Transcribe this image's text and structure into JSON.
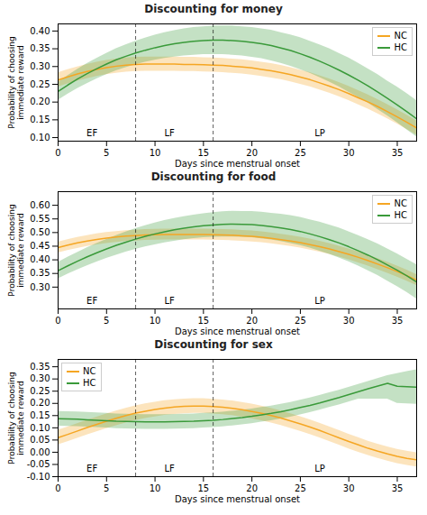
{
  "chart_data": [
    {
      "type": "line",
      "title": "Discounting for money",
      "xlabel": "Days since menstrual onset",
      "ylabel": "Probability of choosing\nimmediate reward",
      "x": [
        0,
        1,
        2,
        3,
        4,
        5,
        6,
        7,
        8,
        9,
        10,
        11,
        12,
        13,
        14,
        15,
        16,
        17,
        18,
        19,
        20,
        21,
        22,
        23,
        24,
        25,
        26,
        27,
        28,
        29,
        30,
        31,
        32,
        33,
        34,
        35,
        36,
        37
      ],
      "xlim": [
        0,
        37
      ],
      "xticks": [
        0,
        5,
        10,
        15,
        20,
        25,
        30,
        35
      ],
      "ylim": [
        0.09,
        0.42
      ],
      "yticks": [
        {
          "value": 0.1,
          "label": "0.10"
        },
        0.15,
        {
          "value": 0.2,
          "label": "0.20"
        },
        0.25,
        {
          "value": 0.3,
          "label": "0.30"
        },
        0.35,
        {
          "value": 0.4,
          "label": "0.40"
        }
      ],
      "vlines": [
        8,
        16
      ],
      "annotations": [
        {
          "text": "EF",
          "x": 3.5
        },
        {
          "text": "LF",
          "x": 11.5
        },
        {
          "text": "LP",
          "x": 27
        }
      ],
      "legend": "upper right",
      "series": [
        {
          "name": "NC",
          "color": "#F5A623",
          "values": [
            0.262,
            0.271,
            0.279,
            0.286,
            0.292,
            0.297,
            0.301,
            0.304,
            0.306,
            0.307,
            0.307,
            0.307,
            0.307,
            0.306,
            0.306,
            0.305,
            0.304,
            0.303,
            0.301,
            0.299,
            0.296,
            0.292,
            0.288,
            0.283,
            0.277,
            0.27,
            0.263,
            0.254,
            0.245,
            0.235,
            0.224,
            0.212,
            0.2,
            0.187,
            0.173,
            0.158,
            0.143,
            0.127
          ],
          "low": [
            0.242,
            0.251,
            0.259,
            0.266,
            0.272,
            0.277,
            0.281,
            0.284,
            0.286,
            0.287,
            0.287,
            0.287,
            0.287,
            0.286,
            0.286,
            0.285,
            0.284,
            0.283,
            0.281,
            0.279,
            0.276,
            0.272,
            0.268,
            0.263,
            0.257,
            0.25,
            0.243,
            0.234,
            0.225,
            0.215,
            0.204,
            0.192,
            0.18,
            0.167,
            0.153,
            0.138,
            0.123,
            0.107
          ],
          "high": [
            0.282,
            0.291,
            0.299,
            0.306,
            0.312,
            0.317,
            0.321,
            0.324,
            0.326,
            0.327,
            0.327,
            0.327,
            0.327,
            0.326,
            0.326,
            0.325,
            0.324,
            0.323,
            0.321,
            0.319,
            0.316,
            0.312,
            0.308,
            0.303,
            0.297,
            0.29,
            0.283,
            0.274,
            0.265,
            0.255,
            0.244,
            0.232,
            0.22,
            0.207,
            0.193,
            0.178,
            0.163,
            0.147
          ]
        },
        {
          "name": "HC",
          "color": "#3A9A3A",
          "values": [
            0.23,
            0.248,
            0.265,
            0.28,
            0.294,
            0.307,
            0.319,
            0.329,
            0.338,
            0.346,
            0.353,
            0.359,
            0.364,
            0.368,
            0.371,
            0.373,
            0.374,
            0.374,
            0.373,
            0.371,
            0.368,
            0.364,
            0.359,
            0.352,
            0.345,
            0.336,
            0.326,
            0.315,
            0.303,
            0.29,
            0.276,
            0.261,
            0.245,
            0.228,
            0.21,
            0.192,
            0.173,
            0.153
          ],
          "low": [
            0.205,
            0.222,
            0.238,
            0.252,
            0.265,
            0.277,
            0.288,
            0.297,
            0.305,
            0.312,
            0.318,
            0.323,
            0.327,
            0.33,
            0.332,
            0.334,
            0.334,
            0.334,
            0.332,
            0.33,
            0.326,
            0.322,
            0.316,
            0.309,
            0.301,
            0.291,
            0.281,
            0.269,
            0.256,
            0.243,
            0.228,
            0.213,
            0.197,
            0.179,
            0.161,
            0.142,
            0.122,
            0.102
          ],
          "high": [
            0.255,
            0.274,
            0.292,
            0.308,
            0.323,
            0.337,
            0.35,
            0.361,
            0.371,
            0.38,
            0.388,
            0.395,
            0.401,
            0.406,
            0.41,
            0.412,
            0.414,
            0.414,
            0.414,
            0.412,
            0.41,
            0.406,
            0.402,
            0.395,
            0.389,
            0.381,
            0.371,
            0.361,
            0.35,
            0.337,
            0.324,
            0.309,
            0.293,
            0.277,
            0.259,
            0.242,
            0.224,
            0.204
          ]
        }
      ]
    },
    {
      "type": "line",
      "title": "Discounting for food",
      "xlabel": "Days since menstrual onset",
      "ylabel": "Probability of choosing\nimmediate reward",
      "x": [
        0,
        1,
        2,
        3,
        4,
        5,
        6,
        7,
        8,
        9,
        10,
        11,
        12,
        13,
        14,
        15,
        16,
        17,
        18,
        19,
        20,
        21,
        22,
        23,
        24,
        25,
        26,
        27,
        28,
        29,
        30,
        31,
        32,
        33,
        34,
        35,
        36,
        37
      ],
      "xlim": [
        0,
        37
      ],
      "xticks": [
        0,
        5,
        10,
        15,
        20,
        25,
        30,
        35
      ],
      "ylim": [
        0.22,
        0.65
      ],
      "yticks": [
        {
          "value": 0.3,
          "label": "0.30"
        },
        0.35,
        {
          "value": 0.4,
          "label": "0.40"
        },
        0.45,
        {
          "value": 0.5,
          "label": "0.50"
        },
        0.55,
        {
          "value": 0.6,
          "label": "0.60"
        }
      ],
      "vlines": [
        8,
        16
      ],
      "annotations": [
        {
          "text": "EF",
          "x": 3.5
        },
        {
          "text": "LF",
          "x": 11.5
        },
        {
          "text": "LP",
          "x": 27
        }
      ],
      "legend": "upper right",
      "series": [
        {
          "name": "NC",
          "color": "#F5A623",
          "values": [
            0.445,
            0.454,
            0.462,
            0.469,
            0.475,
            0.48,
            0.484,
            0.487,
            0.489,
            0.491,
            0.492,
            0.493,
            0.493,
            0.493,
            0.493,
            0.493,
            0.492,
            0.491,
            0.49,
            0.488,
            0.486,
            0.483,
            0.479,
            0.474,
            0.469,
            0.463,
            0.456,
            0.448,
            0.44,
            0.43,
            0.42,
            0.409,
            0.397,
            0.384,
            0.371,
            0.357,
            0.342,
            0.326
          ],
          "low": [
            0.425,
            0.434,
            0.442,
            0.449,
            0.455,
            0.46,
            0.464,
            0.467,
            0.469,
            0.471,
            0.472,
            0.473,
            0.473,
            0.473,
            0.473,
            0.473,
            0.472,
            0.471,
            0.47,
            0.468,
            0.466,
            0.463,
            0.459,
            0.454,
            0.449,
            0.443,
            0.436,
            0.428,
            0.42,
            0.41,
            0.4,
            0.389,
            0.377,
            0.364,
            0.351,
            0.337,
            0.322,
            0.306
          ],
          "high": [
            0.465,
            0.474,
            0.482,
            0.489,
            0.495,
            0.5,
            0.504,
            0.507,
            0.509,
            0.511,
            0.512,
            0.513,
            0.513,
            0.513,
            0.513,
            0.513,
            0.512,
            0.511,
            0.51,
            0.508,
            0.506,
            0.503,
            0.499,
            0.494,
            0.489,
            0.483,
            0.476,
            0.468,
            0.46,
            0.45,
            0.44,
            0.429,
            0.417,
            0.404,
            0.391,
            0.377,
            0.362,
            0.346
          ]
        },
        {
          "name": "HC",
          "color": "#3A9A3A",
          "values": [
            0.36,
            0.378,
            0.395,
            0.411,
            0.426,
            0.44,
            0.453,
            0.465,
            0.476,
            0.486,
            0.495,
            0.503,
            0.51,
            0.516,
            0.521,
            0.525,
            0.528,
            0.53,
            0.531,
            0.53,
            0.529,
            0.526,
            0.522,
            0.517,
            0.511,
            0.504,
            0.495,
            0.485,
            0.474,
            0.462,
            0.448,
            0.433,
            0.417,
            0.4,
            0.381,
            0.362,
            0.341,
            0.319
          ],
          "low": [
            0.33,
            0.347,
            0.363,
            0.378,
            0.392,
            0.405,
            0.417,
            0.428,
            0.438,
            0.447,
            0.455,
            0.462,
            0.468,
            0.474,
            0.478,
            0.481,
            0.483,
            0.484,
            0.484,
            0.483,
            0.481,
            0.477,
            0.473,
            0.467,
            0.46,
            0.452,
            0.443,
            0.432,
            0.42,
            0.407,
            0.393,
            0.377,
            0.36,
            0.342,
            0.322,
            0.302,
            0.28,
            0.256
          ],
          "high": [
            0.39,
            0.409,
            0.427,
            0.444,
            0.46,
            0.475,
            0.489,
            0.502,
            0.514,
            0.525,
            0.535,
            0.544,
            0.552,
            0.558,
            0.564,
            0.569,
            0.573,
            0.576,
            0.578,
            0.577,
            0.577,
            0.575,
            0.571,
            0.567,
            0.562,
            0.556,
            0.547,
            0.538,
            0.528,
            0.517,
            0.503,
            0.489,
            0.474,
            0.458,
            0.44,
            0.422,
            0.402,
            0.382
          ]
        }
      ]
    },
    {
      "type": "line",
      "title": "Discounting for sex",
      "xlabel": "Days since menstrual onset",
      "ylabel": "Probability of choosing\nimmediate reward",
      "x": [
        0,
        1,
        2,
        3,
        4,
        5,
        6,
        7,
        8,
        9,
        10,
        11,
        12,
        13,
        14,
        15,
        16,
        17,
        18,
        19,
        20,
        21,
        22,
        23,
        24,
        25,
        26,
        27,
        28,
        29,
        30,
        31,
        32,
        33,
        34,
        35,
        36,
        37
      ],
      "xlim": [
        0,
        37
      ],
      "xticks": [
        0,
        5,
        10,
        15,
        20,
        25,
        30,
        35
      ],
      "ylim": [
        -0.1,
        0.38
      ],
      "yticks": [
        {
          "value": -0.1,
          "label": "-0.10"
        },
        -0.05,
        {
          "value": 0,
          "label": "0.00"
        },
        0.05,
        {
          "value": 0.1,
          "label": "0.10"
        },
        0.15,
        {
          "value": 0.2,
          "label": "0.20"
        },
        0.25,
        {
          "value": 0.3,
          "label": "0.30"
        },
        0.35
      ],
      "vlines": [
        8,
        16
      ],
      "annotations": [
        {
          "text": "EF",
          "x": 3.5
        },
        {
          "text": "LF",
          "x": 11.5
        },
        {
          "text": "LP",
          "x": 27
        }
      ],
      "legend": "upper left",
      "series": [
        {
          "name": "NC",
          "color": "#F5A623",
          "values": [
            0.06,
            0.073,
            0.087,
            0.101,
            0.114,
            0.127,
            0.139,
            0.15,
            0.16,
            0.168,
            0.175,
            0.181,
            0.185,
            0.188,
            0.189,
            0.189,
            0.187,
            0.184,
            0.18,
            0.174,
            0.167,
            0.159,
            0.15,
            0.14,
            0.128,
            0.116,
            0.103,
            0.089,
            0.074,
            0.059,
            0.044,
            0.03,
            0.016,
            0.004,
            -0.007,
            -0.017,
            -0.025,
            -0.031
          ],
          "low": [
            0.03,
            0.043,
            0.057,
            0.071,
            0.084,
            0.097,
            0.109,
            0.12,
            0.13,
            0.138,
            0.145,
            0.151,
            0.155,
            0.158,
            0.159,
            0.159,
            0.157,
            0.154,
            0.15,
            0.144,
            0.137,
            0.129,
            0.12,
            0.11,
            0.098,
            0.086,
            0.073,
            0.059,
            0.044,
            0.029,
            0.014,
            0.0,
            -0.013,
            -0.025,
            -0.036,
            -0.046,
            -0.054,
            -0.06
          ],
          "high": [
            0.09,
            0.103,
            0.117,
            0.131,
            0.144,
            0.157,
            0.169,
            0.18,
            0.19,
            0.198,
            0.205,
            0.211,
            0.215,
            0.218,
            0.219,
            0.219,
            0.217,
            0.214,
            0.21,
            0.204,
            0.197,
            0.189,
            0.18,
            0.17,
            0.158,
            0.146,
            0.133,
            0.119,
            0.104,
            0.089,
            0.074,
            0.06,
            0.045,
            0.033,
            0.022,
            0.012,
            0.004,
            -0.002
          ]
        },
        {
          "name": "HC",
          "color": "#3A9A3A",
          "values": [
            0.137,
            0.136,
            0.135,
            0.133,
            0.131,
            0.129,
            0.127,
            0.126,
            0.125,
            0.124,
            0.124,
            0.124,
            0.125,
            0.126,
            0.127,
            0.129,
            0.131,
            0.134,
            0.138,
            0.142,
            0.147,
            0.153,
            0.159,
            0.166,
            0.174,
            0.183,
            0.192,
            0.202,
            0.213,
            0.224,
            0.236,
            0.248,
            0.26,
            0.271,
            0.282,
            0.27,
            0.268,
            0.266
          ],
          "low": [
            0.107,
            0.106,
            0.105,
            0.103,
            0.101,
            0.099,
            0.097,
            0.096,
            0.095,
            0.094,
            0.094,
            0.094,
            0.095,
            0.096,
            0.097,
            0.099,
            0.101,
            0.104,
            0.108,
            0.112,
            0.117,
            0.123,
            0.129,
            0.136,
            0.144,
            0.153,
            0.162,
            0.172,
            0.183,
            0.194,
            0.206,
            0.218,
            0.218,
            0.218,
            0.218,
            0.2,
            0.198,
            0.196
          ],
          "high": [
            0.167,
            0.166,
            0.165,
            0.163,
            0.161,
            0.159,
            0.157,
            0.156,
            0.155,
            0.154,
            0.154,
            0.154,
            0.155,
            0.156,
            0.157,
            0.159,
            0.161,
            0.164,
            0.168,
            0.172,
            0.177,
            0.183,
            0.189,
            0.196,
            0.204,
            0.213,
            0.222,
            0.232,
            0.243,
            0.254,
            0.266,
            0.278,
            0.29,
            0.302,
            0.314,
            0.322,
            0.33,
            0.338
          ]
        }
      ]
    }
  ]
}
